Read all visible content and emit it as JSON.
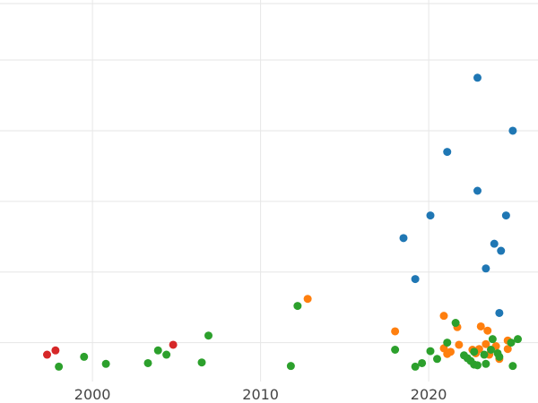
{
  "chart_data": {
    "type": "scatter",
    "title": "",
    "xlabel": "",
    "ylabel": "",
    "xlim": [
      1994.5,
      2026.5
    ],
    "ylim": [
      -0.05,
      5.35
    ],
    "x_ticks": [
      2000,
      2010,
      2020
    ],
    "x_tick_labels": [
      "2000",
      "2010",
      "2020"
    ],
    "y_gridlines": [
      0.5,
      1.5,
      2.5,
      3.5,
      4.5,
      5.3
    ],
    "grid": true,
    "legend": "none",
    "series": [
      {
        "color": "#1f77b4",
        "x": [
          2022.9,
          2025.0,
          2021.1,
          2022.9,
          2020.1,
          2024.6,
          2018.5,
          2023.9,
          2024.3,
          2023.4,
          2019.2,
          2024.2
        ],
        "y": [
          4.25,
          3.5,
          3.2,
          2.65,
          2.3,
          2.3,
          1.98,
          1.9,
          1.8,
          1.55,
          1.4,
          0.92
        ]
      },
      {
        "color": "#ff7f0e",
        "x": [
          2012.8,
          2020.9,
          2021.7,
          2018.0,
          2023.5,
          2023.1,
          2024.7,
          2021.8,
          2020.9,
          2023.4,
          2024.0,
          2022.6,
          2023.0,
          2021.3,
          2021.1,
          2022.8,
          2024.7,
          2023.6,
          2024.2
        ],
        "y": [
          1.12,
          0.88,
          0.72,
          0.66,
          0.67,
          0.73,
          0.53,
          0.47,
          0.42,
          0.48,
          0.45,
          0.4,
          0.41,
          0.37,
          0.34,
          0.35,
          0.41,
          0.33,
          0.27
        ]
      },
      {
        "color": "#2ca02c",
        "x": [
          2012.2,
          2006.9,
          2021.6,
          2025.3,
          2023.8,
          2021.1,
          2024.9,
          2018.0,
          2003.9,
          2020.1,
          2022.7,
          2004.4,
          2023.3,
          2024.2,
          1999.5,
          2022.1,
          2022.3,
          2020.5,
          2006.5,
          2003.3,
          2019.6,
          2000.8,
          2023.4,
          2022.7,
          2022.9,
          2019.2,
          2011.8,
          1998.0,
          2025.0,
          2023.7,
          2022.5,
          2024.1
        ],
        "y": [
          1.02,
          0.6,
          0.78,
          0.55,
          0.55,
          0.5,
          0.5,
          0.4,
          0.39,
          0.38,
          0.37,
          0.33,
          0.33,
          0.3,
          0.3,
          0.32,
          0.28,
          0.27,
          0.22,
          0.21,
          0.21,
          0.2,
          0.2,
          0.19,
          0.18,
          0.16,
          0.17,
          0.16,
          0.17,
          0.4,
          0.24,
          0.35
        ]
      },
      {
        "color": "#d62728",
        "x": [
          2004.8,
          1997.8,
          1997.3
        ],
        "y": [
          0.47,
          0.39,
          0.33
        ]
      }
    ]
  }
}
